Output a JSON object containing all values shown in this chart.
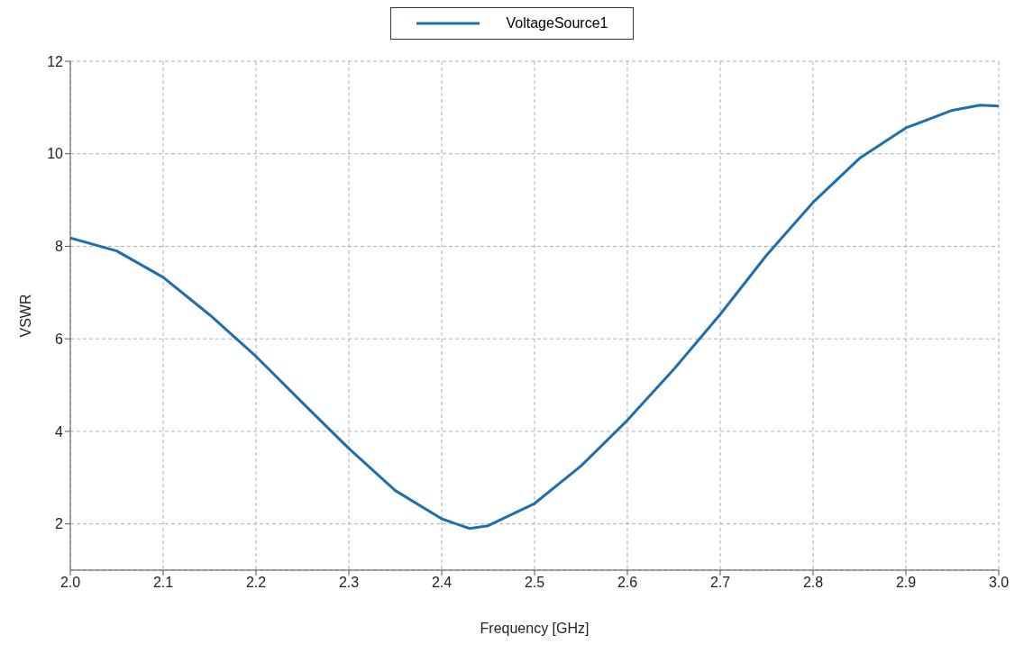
{
  "chart_data": {
    "type": "line",
    "xlabel": "Frequency [GHz]",
    "ylabel": "VSWR",
    "x": [
      2.0,
      2.05,
      2.1,
      2.15,
      2.2,
      2.25,
      2.3,
      2.35,
      2.4,
      2.43,
      2.45,
      2.5,
      2.55,
      2.6,
      2.65,
      2.7,
      2.75,
      2.8,
      2.85,
      2.9,
      2.95,
      2.98,
      3.0
    ],
    "series": [
      {
        "name": "VoltageSource1",
        "color": "#1f6eb0",
        "values": [
          8.18,
          7.9,
          7.33,
          6.52,
          5.62,
          4.62,
          3.63,
          2.72,
          2.11,
          1.9,
          1.96,
          2.44,
          3.25,
          4.24,
          5.34,
          6.53,
          7.81,
          8.95,
          9.9,
          10.56,
          10.94,
          11.05,
          11.03
        ]
      }
    ],
    "xlim": [
      2.0,
      3.0
    ],
    "xticks": [
      {
        "value": 2.0,
        "label": "2.0"
      },
      2.1,
      2.2,
      2.3,
      2.4,
      2.5,
      2.6,
      2.7,
      2.8,
      2.9,
      {
        "value": 3.0,
        "label": "3.0"
      }
    ],
    "ylim": [
      1,
      12
    ],
    "yticks": [
      2,
      4,
      6,
      8,
      10,
      12
    ],
    "grid": true,
    "legend": "top",
    "marker": "none",
    "line_style": "solid"
  }
}
